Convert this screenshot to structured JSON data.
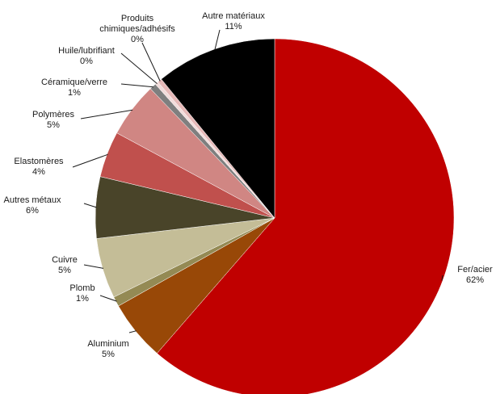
{
  "chart_data": {
    "type": "pie",
    "title": "",
    "slices": [
      {
        "label": "Fer/acier",
        "value_label": "62%",
        "value": 62.0,
        "color": "#c00000"
      },
      {
        "label": "Aluminium",
        "value_label": "5%",
        "value": 5.5,
        "color": "#984807"
      },
      {
        "label": "Plomb",
        "value_label": "1%",
        "value": 0.9,
        "color": "#948a54"
      },
      {
        "label": "Cuivre",
        "value_label": "5%",
        "value": 5.5,
        "color": "#c4bd97"
      },
      {
        "label": "Autres métaux",
        "value_label": "6%",
        "value": 5.6,
        "color": "#494429"
      },
      {
        "label": "Elastomères",
        "value_label": "4%",
        "value": 4.2,
        "color": "#c0504d"
      },
      {
        "label": "Polymères",
        "value_label": "5%",
        "value": 5.0,
        "color": "#d08683"
      },
      {
        "label": "Céramique/verre",
        "value_label": "1%",
        "value": 0.6,
        "color": "#7f7f7f"
      },
      {
        "label": "Huile/lubrifiant",
        "value_label": "0%",
        "value": 0.3,
        "color": "#f2dcdb"
      },
      {
        "label": "Produits chimiques/adhésifs",
        "label_lines": [
          "Produits",
          "chimiques/adhésifs"
        ],
        "value_label": "0%",
        "value": 0.4,
        "color": "#e6b9b8"
      },
      {
        "label": "Autre matériaux",
        "value_label": "11%",
        "value": 11.0,
        "color": "#000000"
      }
    ]
  }
}
